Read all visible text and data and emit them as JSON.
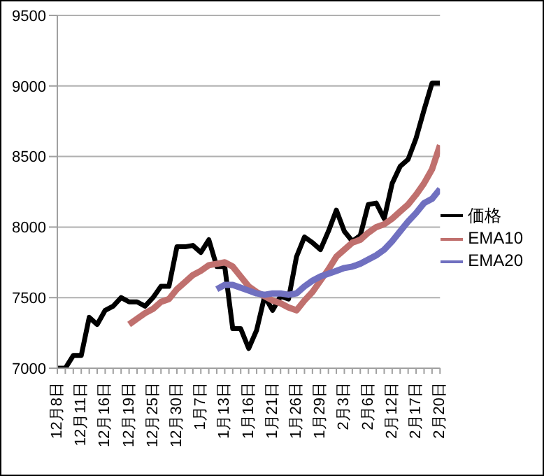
{
  "chart_data": {
    "type": "line",
    "categories": [
      "12月8日",
      null,
      null,
      "12月11日",
      null,
      null,
      "12月16日",
      null,
      null,
      "12月19日",
      null,
      null,
      "12月25日",
      null,
      null,
      "12月30日",
      null,
      null,
      "1月7日",
      null,
      null,
      "1月13日",
      null,
      null,
      "1月16日",
      null,
      null,
      "1月21日",
      null,
      null,
      "1月26日",
      null,
      null,
      "1月29日",
      null,
      null,
      "2月3日",
      null,
      null,
      "2月6日",
      null,
      null,
      "2月12日",
      null,
      null,
      "2月17日",
      null,
      null,
      "2月20日"
    ],
    "series": [
      {
        "name": "価格",
        "color": "#000000",
        "values": [
          7000,
          7000,
          7090,
          7090,
          7360,
          7310,
          7410,
          7440,
          7500,
          7470,
          7470,
          7440,
          7500,
          7580,
          7580,
          7860,
          7860,
          7870,
          7820,
          7910,
          7720,
          7720,
          7280,
          7280,
          7140,
          7270,
          7510,
          7410,
          7510,
          7490,
          7790,
          7930,
          7890,
          7840,
          7970,
          8120,
          7970,
          7900,
          7940,
          8160,
          8170,
          8060,
          8310,
          8430,
          8480,
          8630,
          8830,
          9020,
          9020
        ]
      },
      {
        "name": "EMA10",
        "color": "#c0706e",
        "values": [
          null,
          null,
          null,
          null,
          null,
          null,
          null,
          null,
          null,
          7310,
          7350,
          7390,
          7420,
          7470,
          7490,
          7560,
          7610,
          7660,
          7690,
          7730,
          7740,
          7750,
          7720,
          7650,
          7580,
          7540,
          7510,
          7480,
          7460,
          7430,
          7410,
          7480,
          7540,
          7620,
          7700,
          7790,
          7840,
          7890,
          7910,
          7960,
          8000,
          8020,
          8060,
          8110,
          8160,
          8230,
          8310,
          8410,
          8580
        ]
      },
      {
        "name": "EMA20",
        "color": "#7070c0",
        "values": [
          null,
          null,
          null,
          null,
          null,
          null,
          null,
          null,
          null,
          null,
          null,
          null,
          null,
          null,
          null,
          null,
          null,
          null,
          null,
          null,
          7560,
          7590,
          7590,
          7570,
          7550,
          7530,
          7520,
          7530,
          7530,
          7520,
          7530,
          7580,
          7620,
          7650,
          7670,
          7690,
          7710,
          7720,
          7740,
          7770,
          7800,
          7840,
          7900,
          7970,
          8040,
          8100,
          8170,
          8200,
          8270
        ]
      }
    ],
    "ylim": [
      7000,
      9500
    ],
    "yticks": [
      7000,
      7500,
      8000,
      8500,
      9000,
      9500
    ],
    "grid": "y",
    "legend": "right",
    "marker": "none",
    "line_style": "solid"
  }
}
